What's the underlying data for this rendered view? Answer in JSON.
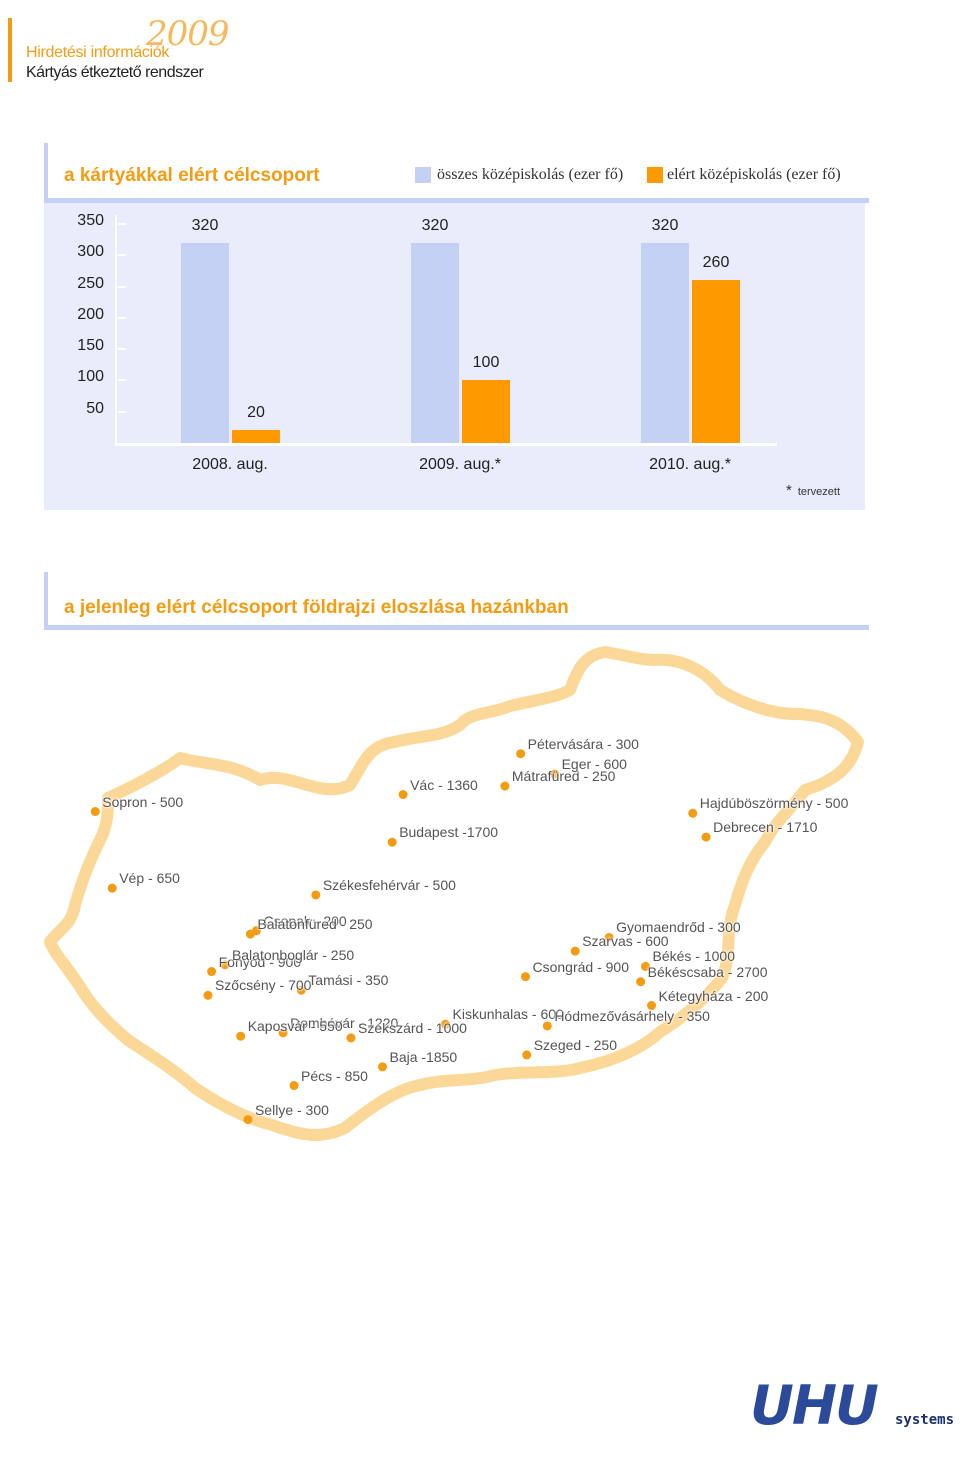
{
  "header": {
    "year": "2009",
    "line1": "Hirdetési információk",
    "line2": "Kártyás étkeztető rendszer"
  },
  "section1": {
    "title": "a kártyákkal elért célcsoport"
  },
  "section2": {
    "title": "a jelenleg elért célcsoport földrajzi eloszlása hazánkban"
  },
  "chart_data": {
    "type": "bar",
    "title": "a kártyákkal elért célcsoport",
    "categories": [
      "2008. aug.",
      "2009. aug.*",
      "2010. aug.*"
    ],
    "series": [
      {
        "name": "összes középiskolás (ezer fő)",
        "values": [
          320,
          320,
          320
        ],
        "color": "#c5d0f5"
      },
      {
        "name": "elért középiskolás (ezer fő)",
        "values": [
          20,
          100,
          260
        ],
        "color": "#ff9900"
      }
    ],
    "yticks": [
      50,
      100,
      150,
      200,
      250,
      300,
      350
    ],
    "ylim": [
      0,
      350
    ],
    "grid": false,
    "legend": "top-right",
    "note_symbol": "*",
    "note": "tervezett"
  },
  "map": {
    "dot_color": "#f39c12",
    "outline_color": "#fcd898",
    "cities": [
      {
        "label": "Sopron - 500",
        "lon": 16.59,
        "lat": 47.68
      },
      {
        "label": "Vép - 650",
        "lon": 16.73,
        "lat": 47.23
      },
      {
        "label": "Csopak - 200",
        "lon": 17.92,
        "lat": 46.98
      },
      {
        "label": "Balatonfüred - 250",
        "lon": 17.87,
        "lat": 46.96
      },
      {
        "label": "Fonyód - 900",
        "lon": 17.55,
        "lat": 46.74
      },
      {
        "label": "Balatonboglár - 250",
        "lon": 17.66,
        "lat": 46.78
      },
      {
        "label": "Szőcsény - 700",
        "lon": 17.52,
        "lat": 46.6
      },
      {
        "label": "Tamási - 350",
        "lon": 18.29,
        "lat": 46.63
      },
      {
        "label": "Dombóvár - 1220",
        "lon": 18.14,
        "lat": 46.38
      },
      {
        "label": "Szekszárd - 1000",
        "lon": 18.7,
        "lat": 46.35
      },
      {
        "label": "Kaposvár - 550",
        "lon": 17.79,
        "lat": 46.36
      },
      {
        "label": "Pécs - 850",
        "lon": 18.23,
        "lat": 46.07
      },
      {
        "label": "Sellye - 300",
        "lon": 17.85,
        "lat": 45.87
      },
      {
        "label": "Baja -1850",
        "lon": 18.96,
        "lat": 46.18
      },
      {
        "label": "Vác - 1360",
        "lon": 19.13,
        "lat": 47.78
      },
      {
        "label": "Mátrafüred - 250",
        "lon": 19.97,
        "lat": 47.83
      },
      {
        "label": "Budapest -1700",
        "lon": 19.04,
        "lat": 47.5
      },
      {
        "label": "Pétervására - 300",
        "lon": 20.1,
        "lat": 48.02
      },
      {
        "label": "Eger - 600",
        "lon": 20.38,
        "lat": 47.9
      },
      {
        "label": "Székesfehérvár - 500",
        "lon": 18.41,
        "lat": 47.19
      },
      {
        "label": "Hajdúböszörmény - 500",
        "lon": 21.52,
        "lat": 47.67
      },
      {
        "label": "Debrecen - 1710",
        "lon": 21.63,
        "lat": 47.53
      },
      {
        "label": "Gyomaendrőd - 300",
        "lon": 20.83,
        "lat": 46.94
      },
      {
        "label": "Szarvas - 600",
        "lon": 20.55,
        "lat": 46.86
      },
      {
        "label": "Békés - 1000",
        "lon": 21.13,
        "lat": 46.77
      },
      {
        "label": "Csongrád - 900",
        "lon": 20.14,
        "lat": 46.71
      },
      {
        "label": "Békéscsaba - 2700",
        "lon": 21.09,
        "lat": 46.68
      },
      {
        "label": "Kiskunhalas - 600",
        "lon": 19.48,
        "lat": 46.43
      },
      {
        "label": "Kétegyháza - 200",
        "lon": 21.18,
        "lat": 46.54
      },
      {
        "label": "Hódmezővásárhely - 350",
        "lon": 20.32,
        "lat": 46.42
      },
      {
        "label": "Szeged - 250",
        "lon": 20.15,
        "lat": 46.25
      }
    ]
  },
  "logo": {
    "word": "UHU",
    "sub": "systems"
  }
}
